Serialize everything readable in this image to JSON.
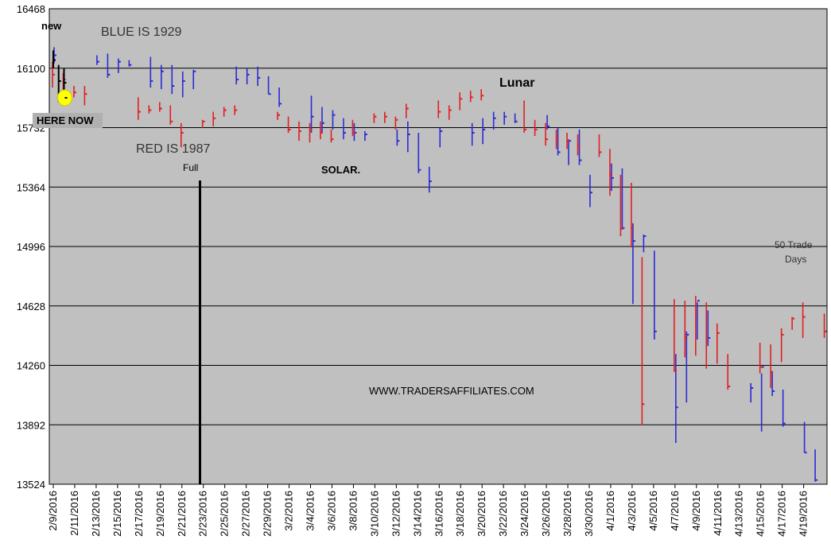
{
  "chart_data": {
    "type": "line",
    "y_ticks": [
      "16468",
      "16100",
      "15732",
      "15364",
      "14996",
      "14628",
      "14260",
      "13892",
      "13524"
    ],
    "ylim": [
      13524,
      16468
    ],
    "x_ticks": [
      "2/9/2016",
      "2/11/2016",
      "2/13/2016",
      "2/15/2016",
      "2/17/2016",
      "2/19/2016",
      "2/21/2016",
      "2/23/2016",
      "2/25/2016",
      "2/27/2016",
      "2/29/2016",
      "3/2/2016",
      "3/4/2016",
      "3/6/2016",
      "3/8/2016",
      "3/10/2016",
      "3/12/2016",
      "3/14/2016",
      "3/16/2016",
      "3/18/2016",
      "3/20/2016",
      "3/22/2016",
      "3/24/2016",
      "3/26/2016",
      "3/28/2016",
      "3/30/2016",
      "4/1/2016",
      "4/3/2016",
      "4/5/2016",
      "4/7/2016",
      "4/9/2016",
      "4/11/2016",
      "4/13/2016",
      "4/15/2016",
      "4/17/2016",
      "4/19/2016"
    ],
    "grid": true,
    "colors": {
      "blue": "#2b2bd6",
      "red": "#e02020",
      "black": "#000000",
      "plot_bg": "#c0c0c0",
      "highlight": "#ffff00"
    },
    "series": [
      {
        "name": "BLUE IS 1929",
        "color": "blue",
        "bars": [
          [
            0,
            16230,
            16130,
            16180
          ],
          [
            4,
            16180,
            16120,
            16140
          ],
          [
            5,
            16190,
            16040,
            16060
          ],
          [
            6,
            16160,
            16070,
            16140
          ],
          [
            7,
            16150,
            16110,
            16120
          ],
          [
            9,
            16170,
            15980,
            16020
          ],
          [
            10,
            16120,
            15970,
            16080
          ],
          [
            11,
            16120,
            15940,
            15990
          ],
          [
            12,
            16080,
            15920,
            16020
          ],
          [
            13,
            16090,
            15970,
            16080
          ],
          [
            17,
            16110,
            16000,
            16030
          ],
          [
            18,
            16100,
            16000,
            16060
          ],
          [
            19,
            16110,
            15990,
            16040
          ],
          [
            20,
            16050,
            15940,
            15940
          ],
          [
            21,
            15980,
            15860,
            15880
          ],
          [
            24,
            15930,
            15700,
            15800
          ],
          [
            25,
            15860,
            15700,
            15760
          ],
          [
            26,
            15840,
            15720,
            15810
          ],
          [
            27,
            15790,
            15660,
            15700
          ],
          [
            28,
            15760,
            15650,
            15700
          ],
          [
            29,
            15710,
            15650,
            15690
          ],
          [
            32,
            15720,
            15620,
            15650
          ],
          [
            33,
            15770,
            15580,
            15690
          ],
          [
            34,
            15700,
            15450,
            15470
          ],
          [
            35,
            15490,
            15330,
            15400
          ],
          [
            36,
            15730,
            15610,
            15710
          ],
          [
            39,
            15760,
            15620,
            15700
          ],
          [
            40,
            15790,
            15630,
            15720
          ],
          [
            41,
            15830,
            15720,
            15790
          ],
          [
            42,
            15830,
            15750,
            15800
          ],
          [
            43,
            15820,
            15760,
            15770
          ],
          [
            46,
            15810,
            15720,
            15740
          ],
          [
            47,
            15730,
            15560,
            15580
          ],
          [
            48,
            15660,
            15500,
            15650
          ],
          [
            49,
            15720,
            15500,
            15530
          ],
          [
            50,
            15440,
            15240,
            15330
          ],
          [
            52,
            15510,
            15340,
            15420
          ],
          [
            53,
            15480,
            15100,
            15110
          ],
          [
            54,
            15140,
            14640,
            15030
          ],
          [
            55,
            15070,
            14960,
            15060
          ],
          [
            56,
            14970,
            14420,
            14470
          ],
          [
            58,
            14330,
            13780,
            14000
          ],
          [
            59,
            14470,
            14030,
            14450
          ],
          [
            60,
            14650,
            14420,
            14660
          ],
          [
            61,
            14600,
            14380,
            14430
          ],
          [
            65,
            14150,
            14030,
            14120
          ],
          [
            66,
            14210,
            13850,
            14250
          ],
          [
            67,
            14220,
            14070,
            14100
          ],
          [
            68,
            14110,
            13880,
            13900
          ],
          [
            70,
            13910,
            13720,
            13720
          ],
          [
            71,
            13740,
            13540,
            13550
          ]
        ]
      },
      {
        "name": "RED IS 1987",
        "color": "red",
        "bars": [
          [
            0,
            16140,
            15980,
            16060
          ],
          [
            1,
            16070,
            15960,
            16030
          ],
          [
            2,
            15990,
            15920,
            15950
          ],
          [
            3,
            15990,
            15870,
            15940
          ],
          [
            8,
            15920,
            15780,
            15830
          ],
          [
            9,
            15870,
            15820,
            15840
          ],
          [
            10,
            15890,
            15830,
            15850
          ],
          [
            11,
            15870,
            15750,
            15770
          ],
          [
            12,
            15760,
            15610,
            15700
          ],
          [
            14,
            15780,
            15730,
            15770
          ],
          [
            15,
            15830,
            15740,
            15790
          ],
          [
            16,
            15860,
            15800,
            15840
          ],
          [
            17,
            15870,
            15810,
            15840
          ],
          [
            21,
            15830,
            15780,
            15810
          ],
          [
            22,
            15800,
            15700,
            15720
          ],
          [
            23,
            15770,
            15650,
            15710
          ],
          [
            24,
            15760,
            15640,
            15720
          ],
          [
            25,
            15770,
            15660,
            15700
          ],
          [
            26,
            15720,
            15640,
            15660
          ],
          [
            28,
            15780,
            15680,
            15700
          ],
          [
            30,
            15820,
            15760,
            15800
          ],
          [
            31,
            15830,
            15760,
            15800
          ],
          [
            32,
            15800,
            15720,
            15780
          ],
          [
            33,
            15880,
            15790,
            15850
          ],
          [
            36,
            15900,
            15790,
            15830
          ],
          [
            37,
            15870,
            15780,
            15840
          ],
          [
            38,
            15950,
            15840,
            15910
          ],
          [
            39,
            15960,
            15890,
            15920
          ],
          [
            40,
            15970,
            15900,
            15930
          ],
          [
            44,
            15900,
            15700,
            15720
          ],
          [
            45,
            15780,
            15680,
            15720
          ],
          [
            46,
            15760,
            15620,
            15660
          ],
          [
            47,
            15720,
            15600,
            15660
          ],
          [
            48,
            15700,
            15600,
            15650
          ],
          [
            49,
            15690,
            15560,
            15620
          ],
          [
            51,
            15690,
            15550,
            15580
          ],
          [
            52,
            15600,
            15310,
            15440
          ],
          [
            53,
            15440,
            15060,
            15110
          ],
          [
            54,
            15390,
            14990,
            15110
          ],
          [
            55,
            14930,
            13890,
            14020
          ],
          [
            58,
            14670,
            14220,
            14230
          ],
          [
            59,
            14660,
            14310,
            14440
          ],
          [
            60,
            14690,
            14320,
            14580
          ],
          [
            61,
            14650,
            14240,
            14410
          ],
          [
            62,
            14520,
            14270,
            14460
          ],
          [
            63,
            14330,
            14110,
            14130
          ],
          [
            66,
            14400,
            14210,
            14250
          ],
          [
            67,
            14390,
            14120,
            14220
          ],
          [
            68,
            14490,
            14280,
            14450
          ],
          [
            69,
            14560,
            14480,
            14550
          ],
          [
            70,
            14650,
            14430,
            14560
          ],
          [
            72,
            14580,
            14430,
            14470
          ]
        ]
      },
      {
        "name": "black",
        "color": "black",
        "bars": [
          [
            0,
            16210,
            16100,
            16150
          ],
          [
            0.5,
            16120,
            15890,
            16020
          ],
          [
            1,
            16100,
            15920,
            16010
          ]
        ]
      }
    ],
    "highlight_index": 1,
    "full_marker_index": 18,
    "annotations": {
      "new": "new",
      "here_now": "HERE NOW",
      "blue_label": "BLUE IS 1929",
      "red_label": "RED IS 1987",
      "full": "Full",
      "solar": "SOLAR.",
      "lunar": "Lunar",
      "website": "WWW.TRADERSAFFILIATES.COM",
      "trade_days_1": "50 Trade",
      "trade_days_2": "Days"
    }
  }
}
